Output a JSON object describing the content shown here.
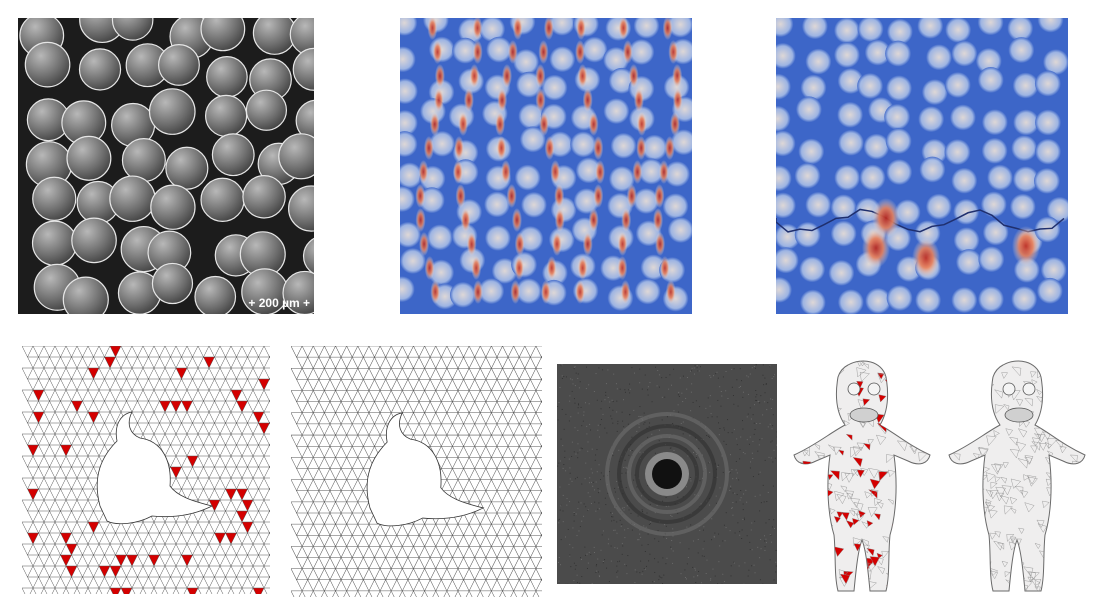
{
  "sem_panel": {
    "scale_bar_text": "+ 200 µm +"
  },
  "colors": {
    "stress_low": "#3d66c8",
    "stress_mid": "#f0e4d8",
    "stress_high": "#c0281a",
    "mesh_flag": "#d40000",
    "mesh_line": "#555555",
    "spectrum_bg": "#4b4b4b"
  },
  "panels": [
    {
      "id": "sem-micrograph-panel"
    },
    {
      "id": "stress-field-chains-panel"
    },
    {
      "id": "stress-field-crack-panel"
    },
    {
      "id": "dolphin-mesh-flagged-panel"
    },
    {
      "id": "dolphin-mesh-refined-panel"
    },
    {
      "id": "spectrum-panel"
    },
    {
      "id": "figure-mesh-flagged-panel"
    },
    {
      "id": "figure-mesh-refined-panel"
    }
  ]
}
